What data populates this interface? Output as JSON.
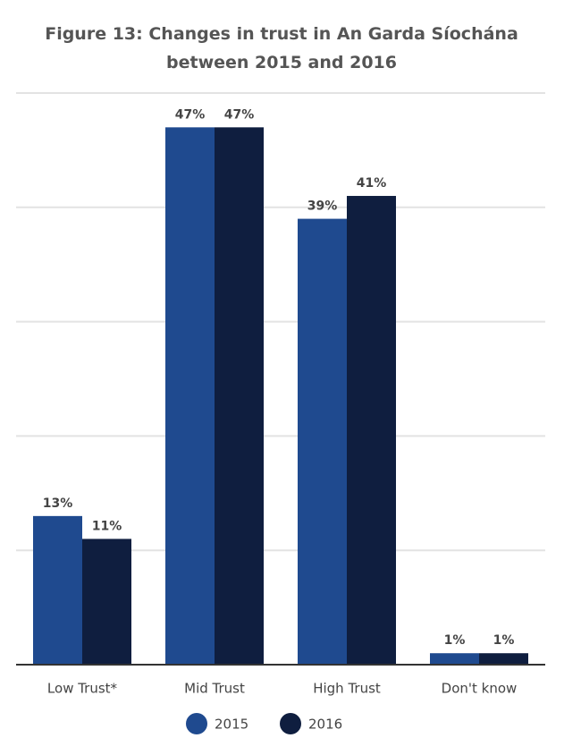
{
  "chart_data": {
    "type": "bar",
    "title": "Figure 13: Changes in trust in An Garda Síochána between 2015 and 2016",
    "categories": [
      "Low Trust*",
      "Mid Trust",
      "High Trust",
      "Don't know"
    ],
    "series": [
      {
        "name": "2015",
        "color": "#1f4a8f",
        "values": [
          13,
          47,
          39,
          1
        ],
        "value_labels": [
          "13%",
          "47%",
          "39%",
          "1%"
        ]
      },
      {
        "name": "2016",
        "color": "#0f1e3f",
        "values": [
          11,
          47,
          41,
          1
        ],
        "value_labels": [
          "11%",
          "47%",
          "41%",
          "1%"
        ]
      }
    ],
    "ylim": [
      0,
      50
    ],
    "yticks": [
      0,
      10,
      20,
      30,
      40,
      50
    ],
    "grid": true
  }
}
